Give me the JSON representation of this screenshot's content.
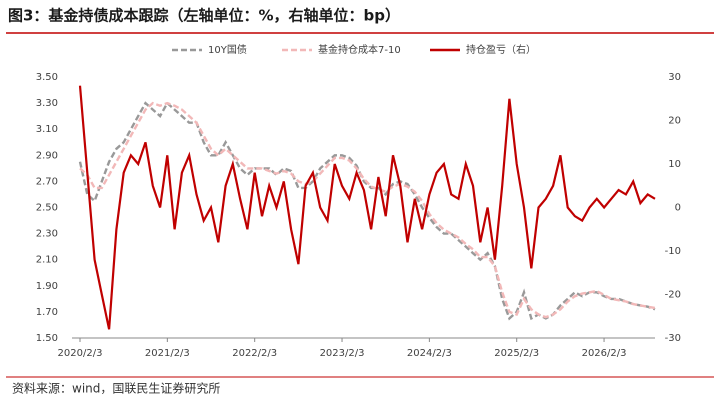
{
  "chart_data": {
    "type": "line",
    "title": "图3：基金持债成本跟踪（左轴单位：%，右轴单位：bp）",
    "source": "资料来源：wind，国联民生证券研究所",
    "categories": [
      "2020/2/3",
      null,
      null,
      null,
      null,
      null,
      null,
      null,
      null,
      null,
      null,
      null,
      "2021/2/3",
      null,
      null,
      null,
      null,
      null,
      null,
      null,
      null,
      null,
      null,
      null,
      "2022/2/3",
      null,
      null,
      null,
      null,
      null,
      null,
      null,
      null,
      null,
      null,
      null,
      "2023/2/3",
      null,
      null,
      null,
      null,
      null,
      null,
      null,
      null,
      null,
      null,
      null,
      "2024/2/3",
      null,
      null,
      null,
      null,
      null,
      null,
      null,
      null,
      null,
      null,
      null,
      "2025/2/3",
      null,
      null,
      null,
      null,
      null,
      null,
      null,
      null,
      null,
      null,
      null,
      "2026/2/3",
      null,
      null,
      null,
      null,
      null,
      null,
      null
    ],
    "series": [
      {
        "name": "10Y国债",
        "color": "#999999",
        "dash": "6 3",
        "axis": "y",
        "values": [
          2.85,
          2.6,
          2.55,
          2.7,
          2.85,
          2.95,
          3.0,
          3.1,
          3.2,
          3.3,
          3.25,
          3.2,
          3.3,
          3.25,
          3.2,
          3.15,
          3.15,
          3.0,
          2.9,
          2.9,
          3.0,
          2.9,
          2.8,
          2.75,
          2.8,
          2.8,
          2.8,
          2.75,
          2.8,
          2.78,
          2.65,
          2.65,
          2.7,
          2.8,
          2.85,
          2.9,
          2.9,
          2.88,
          2.82,
          2.7,
          2.65,
          2.65,
          2.6,
          2.68,
          2.7,
          2.68,
          2.6,
          2.5,
          2.42,
          2.35,
          2.3,
          2.3,
          2.25,
          2.2,
          2.15,
          2.1,
          2.15,
          2.05,
          1.8,
          1.65,
          1.7,
          1.85,
          1.65,
          1.68,
          1.65,
          1.68,
          1.75,
          1.8,
          1.85,
          1.82,
          1.85,
          1.85,
          1.82,
          1.8,
          1.8,
          1.78,
          1.76,
          1.75,
          1.74,
          1.72
        ]
      },
      {
        "name": "基金持仓成本7-10",
        "color": "#f2b8b8",
        "dash": "6 3",
        "axis": "y",
        "values": [
          2.8,
          2.75,
          2.65,
          2.65,
          2.75,
          2.85,
          2.95,
          3.05,
          3.15,
          3.25,
          3.3,
          3.28,
          3.3,
          3.28,
          3.25,
          3.2,
          3.15,
          3.05,
          2.95,
          2.9,
          2.95,
          2.9,
          2.85,
          2.8,
          2.8,
          2.8,
          2.78,
          2.76,
          2.78,
          2.76,
          2.7,
          2.68,
          2.7,
          2.76,
          2.82,
          2.88,
          2.88,
          2.86,
          2.8,
          2.72,
          2.66,
          2.64,
          2.62,
          2.66,
          2.68,
          2.66,
          2.62,
          2.55,
          2.45,
          2.38,
          2.33,
          2.3,
          2.27,
          2.22,
          2.18,
          2.12,
          2.12,
          2.05,
          1.85,
          1.7,
          1.68,
          1.8,
          1.72,
          1.68,
          1.66,
          1.68,
          1.72,
          1.78,
          1.82,
          1.84,
          1.85,
          1.86,
          1.83,
          1.8,
          1.79,
          1.78,
          1.76,
          1.75,
          1.74,
          1.73
        ]
      },
      {
        "name": "持仓盈亏（右）",
        "color": "#c00000",
        "dash": "none",
        "axis": "y2",
        "values": [
          28,
          8,
          -12,
          -20,
          -28,
          -5,
          8,
          12,
          10,
          15,
          5,
          0,
          12,
          -5,
          8,
          12,
          3,
          -3,
          0,
          -8,
          5,
          10,
          2,
          -5,
          8,
          -2,
          5,
          0,
          6,
          -5,
          -13,
          5,
          8,
          0,
          -3,
          10,
          5,
          2,
          8,
          4,
          -5,
          7,
          -2,
          12,
          5,
          -8,
          2,
          -5,
          3,
          8,
          10,
          3,
          2,
          10,
          5,
          -8,
          0,
          -12,
          5,
          25,
          10,
          0,
          -14,
          0,
          2,
          5,
          12,
          0,
          -2,
          -3,
          0,
          2,
          0,
          2,
          4,
          3,
          6,
          1,
          3,
          2
        ]
      }
    ],
    "ylim": [
      1.5,
      3.5
    ],
    "yticks": [
      {
        "value": 1.5,
        "label": "1.50"
      },
      {
        "value": 1.7,
        "label": "1.70"
      },
      {
        "value": 1.9,
        "label": "1.90"
      },
      {
        "value": 2.1,
        "label": "2.10"
      },
      {
        "value": 2.3,
        "label": "2.30"
      },
      {
        "value": 2.5,
        "label": "2.50"
      },
      {
        "value": 2.7,
        "label": "2.70"
      },
      {
        "value": 2.9,
        "label": "2.90"
      },
      {
        "value": 3.1,
        "label": "3.10"
      },
      {
        "value": 3.3,
        "label": "3.30"
      },
      {
        "value": 3.5,
        "label": "3.50"
      }
    ],
    "y2lim": [
      -30,
      30
    ],
    "y2ticks": [
      -30,
      -20,
      -10,
      0,
      10,
      20,
      30
    ],
    "grid": false
  }
}
